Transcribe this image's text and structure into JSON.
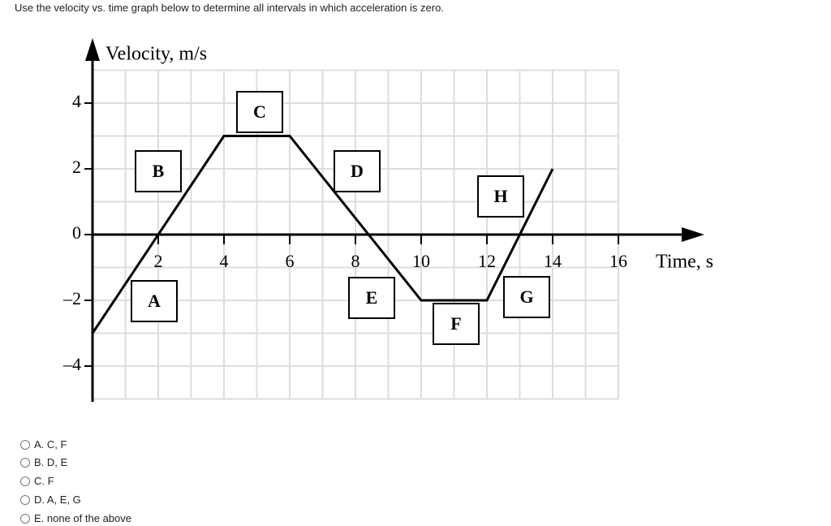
{
  "question": "Use the velocity vs. time graph below to determine all intervals in which acceleration is zero.",
  "chart_data": {
    "type": "line",
    "y_label": "Velocity, m/s",
    "x_label": "Time, s",
    "x": [
      0,
      4,
      6,
      10,
      12,
      14
    ],
    "values": [
      -3,
      3,
      3,
      -2,
      -2,
      2
    ],
    "color": "#000000",
    "xlim": [
      0,
      16
    ],
    "ylim": [
      -5,
      5
    ],
    "xticks": [
      2,
      4,
      6,
      8,
      10,
      12,
      14,
      16
    ],
    "yticks": [
      4,
      2,
      0,
      {
        "value": -2,
        "label": "–2"
      },
      {
        "value": -4,
        "label": "–4"
      }
    ],
    "grid": true,
    "annotations": [
      "A",
      "B",
      "C",
      "D",
      "E",
      "F",
      "G",
      "H"
    ]
  },
  "options": [
    "A. C, F",
    "B. D, E",
    "C. F",
    "D. A, E, G",
    "E. none of the above"
  ]
}
